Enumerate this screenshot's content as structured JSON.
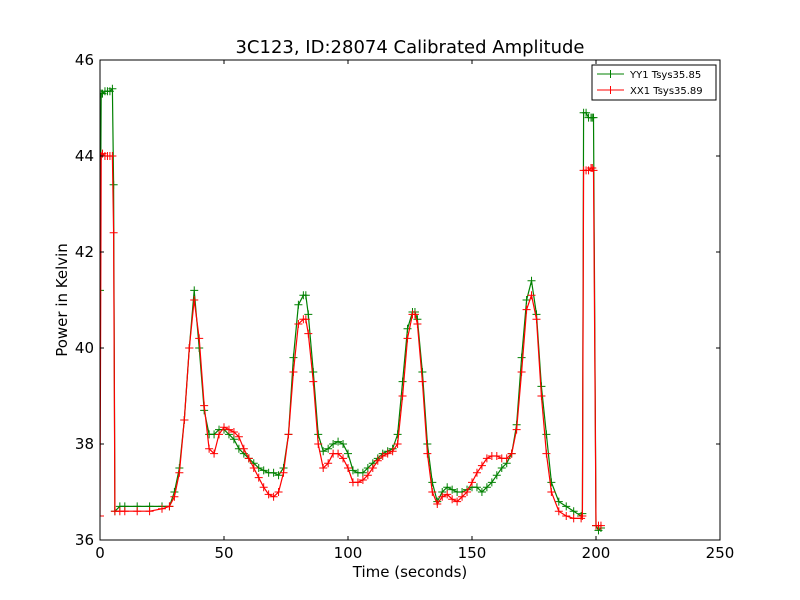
{
  "chart_data": {
    "type": "line",
    "title": "3C123, ID:28074 Calibrated Amplitude",
    "xlabel": "Time (seconds)",
    "ylabel": "Power in Kelvin",
    "xlim": [
      0,
      250
    ],
    "ylim": [
      36,
      46
    ],
    "xticks": [
      0,
      50,
      100,
      150,
      200,
      250
    ],
    "yticks": [
      36,
      38,
      40,
      42,
      44,
      46
    ],
    "grid": false,
    "legend_position": "top-right",
    "series": [
      {
        "name": "YY1 Tsys35.85",
        "color": "#008000",
        "marker": "+",
        "x": [
          0,
          0.5,
          1,
          2,
          3,
          4,
          5,
          5.5,
          6,
          8,
          10,
          15,
          20,
          25,
          28,
          30,
          32,
          34,
          36,
          38,
          40,
          42,
          44,
          46,
          48,
          50,
          52,
          54,
          56,
          58,
          60,
          62,
          64,
          66,
          68,
          70,
          72,
          74,
          76,
          78,
          80,
          82,
          83,
          84,
          86,
          88,
          90,
          92,
          94,
          96,
          98,
          100,
          102,
          104,
          106,
          108,
          110,
          112,
          114,
          116,
          118,
          120,
          122,
          124,
          126,
          127,
          128,
          130,
          132,
          134,
          136,
          138,
          140,
          142,
          144,
          146,
          148,
          150,
          152,
          154,
          156,
          158,
          160,
          162,
          164,
          166,
          168,
          170,
          172,
          174,
          176,
          178,
          180,
          182,
          185,
          188,
          191,
          194,
          194.5,
          195,
          196,
          197,
          198,
          198.5,
          199,
          200,
          201,
          202
        ],
        "y": [
          41.2,
          45.3,
          45.3,
          45.35,
          45.35,
          45.35,
          45.4,
          43.4,
          36.6,
          36.7,
          36.7,
          36.7,
          36.7,
          36.7,
          36.7,
          37.0,
          37.5,
          38.5,
          40.0,
          41.2,
          40.0,
          38.7,
          38.2,
          38.2,
          38.3,
          38.3,
          38.2,
          38.1,
          37.9,
          37.8,
          37.7,
          37.6,
          37.5,
          37.45,
          37.4,
          37.4,
          37.35,
          37.5,
          38.2,
          39.8,
          40.9,
          41.1,
          41.1,
          40.7,
          39.5,
          38.2,
          37.85,
          37.9,
          38.0,
          38.05,
          38.0,
          37.8,
          37.45,
          37.4,
          37.4,
          37.5,
          37.6,
          37.7,
          37.8,
          37.85,
          37.9,
          38.2,
          39.3,
          40.4,
          40.75,
          40.75,
          40.6,
          39.5,
          38.0,
          37.2,
          36.8,
          37.0,
          37.1,
          37.05,
          37.0,
          37.0,
          37.05,
          37.1,
          37.1,
          37.0,
          37.1,
          37.2,
          37.35,
          37.5,
          37.6,
          37.8,
          38.4,
          39.8,
          41.0,
          41.4,
          40.7,
          39.2,
          38.2,
          37.2,
          36.8,
          36.7,
          36.6,
          36.5,
          36.55,
          44.9,
          44.9,
          44.8,
          44.8,
          44.8,
          44.8,
          36.3,
          36.2,
          36.25
        ],
        "values": [
          41.2,
          45.3,
          45.3,
          45.35,
          45.35,
          45.35,
          45.4,
          43.4,
          36.6,
          36.7,
          36.7,
          36.7,
          36.7,
          36.7,
          36.7,
          37.0,
          37.5,
          38.5,
          40.0,
          41.2,
          40.0,
          38.7,
          38.2,
          38.2,
          38.3,
          38.3,
          38.2,
          38.1,
          37.9,
          37.8,
          37.7,
          37.6,
          37.5,
          37.45,
          37.4,
          37.4,
          37.35,
          37.5,
          38.2,
          39.8,
          40.9,
          41.1,
          41.1,
          40.7,
          39.5,
          38.2,
          37.85,
          37.9,
          38.0,
          38.05,
          38.0,
          37.8,
          37.45,
          37.4,
          37.4,
          37.5,
          37.6,
          37.7,
          37.8,
          37.85,
          37.9,
          38.2,
          39.3,
          40.4,
          40.75,
          40.75,
          40.6,
          39.5,
          38.0,
          37.2,
          36.8,
          37.0,
          37.1,
          37.05,
          37.0,
          37.0,
          37.05,
          37.1,
          37.1,
          37.0,
          37.1,
          37.2,
          37.35,
          37.5,
          37.6,
          37.8,
          38.4,
          39.8,
          41.0,
          41.4,
          40.7,
          39.2,
          38.2,
          37.2,
          36.8,
          36.7,
          36.6,
          36.5,
          36.55,
          44.9,
          44.9,
          44.8,
          44.8,
          44.8,
          44.8,
          36.3,
          36.2,
          36.25
        ]
      },
      {
        "name": "XX1 Tsys35.89",
        "color": "#ff0000",
        "marker": "+",
        "x": [
          0,
          0.5,
          1,
          2,
          3,
          4,
          5,
          5.5,
          6,
          8,
          10,
          15,
          20,
          25,
          28,
          30,
          32,
          34,
          36,
          38,
          40,
          42,
          44,
          46,
          48,
          50,
          52,
          54,
          56,
          58,
          60,
          62,
          64,
          66,
          68,
          70,
          72,
          74,
          76,
          78,
          80,
          82,
          83,
          84,
          86,
          88,
          90,
          92,
          94,
          96,
          98,
          100,
          102,
          104,
          106,
          108,
          110,
          112,
          114,
          116,
          118,
          120,
          122,
          124,
          126,
          127,
          128,
          130,
          132,
          134,
          136,
          138,
          140,
          142,
          144,
          146,
          148,
          150,
          152,
          154,
          156,
          158,
          160,
          162,
          164,
          166,
          168,
          170,
          172,
          174,
          176,
          178,
          180,
          182,
          185,
          188,
          191,
          194,
          194.5,
          195,
          196,
          197,
          198,
          198.5,
          199,
          200,
          201,
          202
        ],
        "y": [
          36.5,
          44.0,
          44.05,
          44.0,
          44.0,
          44.0,
          44.0,
          42.4,
          36.6,
          36.6,
          36.6,
          36.6,
          36.6,
          36.65,
          36.7,
          36.9,
          37.4,
          38.5,
          40.0,
          41.0,
          40.2,
          38.8,
          37.9,
          37.8,
          38.2,
          38.35,
          38.3,
          38.25,
          38.15,
          37.9,
          37.7,
          37.5,
          37.3,
          37.1,
          36.95,
          36.9,
          37.0,
          37.4,
          38.2,
          39.5,
          40.5,
          40.6,
          40.6,
          40.3,
          39.3,
          38.0,
          37.5,
          37.6,
          37.8,
          37.8,
          37.7,
          37.5,
          37.2,
          37.2,
          37.25,
          37.35,
          37.5,
          37.65,
          37.75,
          37.8,
          37.85,
          38.0,
          39.0,
          40.2,
          40.7,
          40.7,
          40.5,
          39.3,
          37.8,
          37.0,
          36.75,
          36.9,
          36.95,
          36.85,
          36.8,
          36.9,
          37.0,
          37.2,
          37.4,
          37.55,
          37.7,
          37.75,
          37.75,
          37.7,
          37.7,
          37.8,
          38.3,
          39.5,
          40.8,
          41.1,
          40.6,
          39.0,
          37.8,
          37.0,
          36.6,
          36.5,
          36.45,
          36.45,
          36.5,
          43.7,
          43.7,
          43.7,
          43.75,
          43.75,
          43.7,
          36.3,
          36.3,
          36.3
        ],
        "values": [
          36.5,
          44.0,
          44.05,
          44.0,
          44.0,
          44.0,
          44.0,
          42.4,
          36.6,
          36.6,
          36.6,
          36.6,
          36.6,
          36.65,
          36.7,
          36.9,
          37.4,
          38.5,
          40.0,
          41.0,
          40.2,
          38.8,
          37.9,
          37.8,
          38.2,
          38.35,
          38.3,
          38.25,
          38.15,
          37.9,
          37.7,
          37.5,
          37.3,
          37.1,
          36.95,
          36.9,
          37.0,
          37.4,
          38.2,
          39.5,
          40.5,
          40.6,
          40.6,
          40.3,
          39.3,
          38.0,
          37.5,
          37.6,
          37.8,
          37.8,
          37.7,
          37.5,
          37.2,
          37.2,
          37.25,
          37.35,
          37.5,
          37.65,
          37.75,
          37.8,
          37.85,
          38.0,
          39.0,
          40.2,
          40.7,
          40.7,
          40.5,
          39.3,
          37.8,
          37.0,
          36.75,
          36.9,
          36.95,
          36.85,
          36.8,
          36.9,
          37.0,
          37.2,
          37.4,
          37.55,
          37.7,
          37.75,
          37.75,
          37.7,
          37.7,
          37.8,
          38.3,
          39.5,
          40.8,
          41.1,
          40.6,
          39.0,
          37.8,
          37.0,
          36.6,
          36.5,
          36.45,
          36.45,
          36.5,
          43.7,
          43.7,
          43.7,
          43.75,
          43.75,
          43.7,
          36.3,
          36.3,
          36.3
        ]
      }
    ]
  }
}
